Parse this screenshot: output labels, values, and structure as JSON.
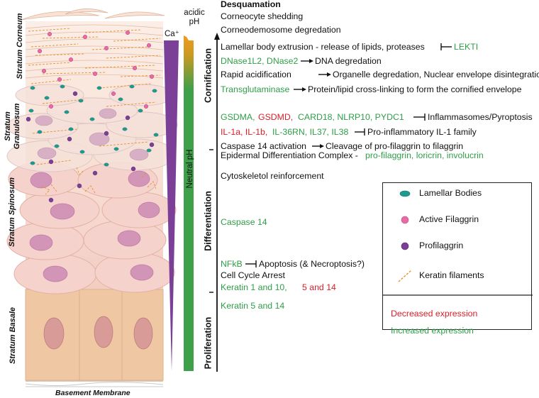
{
  "layers": {
    "corneum": "Stratum Corneum",
    "granulosum_line1": "Stratum",
    "granulosum_line2": "Granulosum",
    "spinosum": "Stratum Spinosum",
    "basale": "Stratum Basale",
    "basement": "Basement Membrane"
  },
  "gradients": {
    "calcium": "Ca⁺",
    "acidic_line1": "acidic",
    "acidic_line2": "pH",
    "neutral": "Neutral pH",
    "colors": {
      "calcium": "#7b3f98",
      "ph_neutral": "#3fa04a",
      "ph_acidic": "#f39a1e"
    }
  },
  "stages": {
    "cornification": "Cornification",
    "differentiation": "Differentiation",
    "proliferation": "Proliferation"
  },
  "annotations": {
    "desquamation": "Desquamation",
    "corneocyte_shedding": "Corneocyte shedding",
    "corneodesmosome": "Corneodemosome degredation",
    "lamellar_text": "Lamellar body extrusion - release of lipids, proteases",
    "lekti": "LEKTI",
    "dnase_genes": "DNase1L2, DNase2",
    "dna_degradation": "DNA degredation",
    "rapid_acid": "Rapid acidification",
    "organelle": "Organelle degredation, Nuclear envelope disintegration",
    "transglutaminase": "Transglutaminase",
    "cross_linking": "Protein/lipid cross-linking to form the cornified envelope",
    "gsdma": "GSDMA,",
    "gsdmd": "GSDMD,",
    "card18": "CARD18, NLRP10, PYDC1",
    "inflammasomes": "Inflammasomes/Pyroptosis",
    "il1a_il1b": "IL-1a, IL-1b,",
    "il36_group": "IL-36RN, IL37, IL38",
    "pro_inflammatory": "Pro-inflammatory IL-1 family",
    "caspase14_activation": "Caspase 14 activation",
    "profilaggrin_cleavage": "Cleavage of pro-filaggrin to filaggrin",
    "edc_text": "Epidermal Differentiation Complex -",
    "edc_genes": "pro-filaggrin, loricrin, involucrin",
    "cytoskeletol": "Cytoskeletol reinforcement",
    "caspase14": "Caspase 14",
    "nfkb": "NFkB",
    "apoptosis": "Apoptosis (& Necroptosis?)",
    "cell_cycle": "Cell Cycle Arrest",
    "keratin_1_10": "Keratin 1 and 10,",
    "keratin_5_14_red": "5 and 14",
    "keratin_5_14_green": "Keratin 5 and 14"
  },
  "legend": {
    "lamellar": "Lamellar Bodies",
    "filaggrin": "Active Filaggrin",
    "profilaggrin": "Profilaggrin",
    "keratin": "Keratin filaments",
    "decreased": "Decreased expression",
    "increased": "Increased expression",
    "colors": {
      "lamellar": "#1e9a8e",
      "filaggrin": "#e96aa6",
      "profilaggrin": "#7b3f98",
      "keratin": "#e8902a",
      "decreased": "#d8202a",
      "increased": "#2e9e48"
    }
  }
}
